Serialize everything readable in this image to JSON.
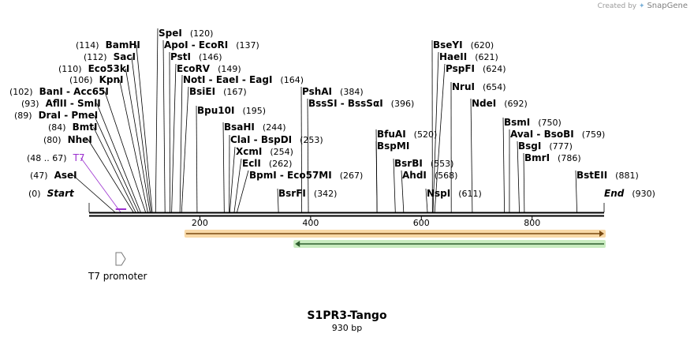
{
  "credit": {
    "prefix": "Created by",
    "brand": "SnapGene"
  },
  "title": "S1PR3-Tango",
  "subtitle": "930 bp",
  "colors": {
    "backbone": "#000000",
    "t7": "#9b2fcf",
    "orange": "#f2a23a",
    "orangeBg": "#f8d9a8",
    "green": "#3aa63a",
    "greenBg": "#c9ecc0"
  },
  "scale": {
    "length": 930,
    "ticks": [
      200,
      400,
      600,
      800
    ]
  },
  "site_labels": [
    {
      "id": "start",
      "pos": "(0)",
      "name": "Start",
      "style": "italic",
      "bp": 0
    },
    {
      "id": "asei",
      "pos": "(47)",
      "name": "AseI",
      "bp": 47
    },
    {
      "id": "t7",
      "pos": "(48 .. 67)",
      "name": "T7",
      "style": "primer",
      "bp": 57
    },
    {
      "id": "nhei",
      "pos": "(80)",
      "name": "NheI",
      "bp": 80
    },
    {
      "id": "bmti",
      "pos": "(84)",
      "name": "BmtI",
      "bp": 84
    },
    {
      "id": "drai",
      "pos": "(89)",
      "name": "DraI - PmeI",
      "bp": 89
    },
    {
      "id": "aflii",
      "pos": "(93)",
      "name": "AflII - SmlI",
      "bp": 93
    },
    {
      "id": "bani",
      "pos": "(102)",
      "name": "BanI - Acc65I",
      "bp": 102
    },
    {
      "id": "kpni",
      "pos": "(106)",
      "name": "KpnI",
      "bp": 106
    },
    {
      "id": "eco53ki",
      "pos": "(110)",
      "name": "Eco53kI",
      "bp": 110
    },
    {
      "id": "saci",
      "pos": "(112)",
      "name": "SacI",
      "bp": 112
    },
    {
      "id": "bamhi",
      "pos": "(114)",
      "name": "BamHI",
      "bp": 114
    },
    {
      "id": "spei",
      "pos": "(120)",
      "name": "SpeI",
      "bp": 120
    },
    {
      "id": "apoi",
      "pos": "(137)",
      "name": "ApoI - EcoRI",
      "bp": 137
    },
    {
      "id": "psti",
      "pos": "(146)",
      "name": "PstI",
      "bp": 146
    },
    {
      "id": "ecorv",
      "pos": "(149)",
      "name": "EcoRV",
      "bp": 149
    },
    {
      "id": "noti",
      "pos": "(164)",
      "name": "NotI - EaeI - EagI",
      "bp": 164
    },
    {
      "id": "bsiei",
      "pos": "(167)",
      "name": "BsiEI",
      "bp": 167
    },
    {
      "id": "bpu10i",
      "pos": "(195)",
      "name": "Bpu10I",
      "bp": 195
    },
    {
      "id": "bsahi",
      "pos": "(244)",
      "name": "BsaHI",
      "bp": 244
    },
    {
      "id": "clai",
      "pos": "(253)",
      "name": "ClaI - BspDI",
      "bp": 253
    },
    {
      "id": "xcmi",
      "pos": "(254)",
      "name": "XcmI",
      "bp": 254
    },
    {
      "id": "ecli",
      "pos": "(262)",
      "name": "EclI",
      "bp": 262
    },
    {
      "id": "bpmi",
      "pos": "(267)",
      "name": "BpmI - Eco57MI",
      "bp": 267
    },
    {
      "id": "bsrfi",
      "pos": "(342)",
      "name": "BsrFI",
      "bp": 342
    },
    {
      "id": "pshai",
      "pos": "(384)",
      "name": "PshAI",
      "bp": 384
    },
    {
      "id": "bsssi",
      "pos": "(396)",
      "name": "BssSI - BssSαI",
      "bp": 396
    },
    {
      "id": "bfuai",
      "pos": "(520)",
      "name": "BfuAI",
      "bp": 520
    },
    {
      "id": "bspmi",
      "pos": "",
      "name": "BspMI",
      "bp": 520
    },
    {
      "id": "bsrbi",
      "pos": "(553)",
      "name": "BsrBI",
      "bp": 553
    },
    {
      "id": "ahdi",
      "pos": "(568)",
      "name": "AhdI",
      "bp": 568
    },
    {
      "id": "nspi",
      "pos": "(611)",
      "name": "NspI",
      "bp": 611
    },
    {
      "id": "bseyi",
      "pos": "(620)",
      "name": "BseYI",
      "bp": 620
    },
    {
      "id": "haeii",
      "pos": "(621)",
      "name": "HaeII",
      "bp": 621
    },
    {
      "id": "pspfi",
      "pos": "(624)",
      "name": "PspFI",
      "bp": 624
    },
    {
      "id": "nrui",
      "pos": "(654)",
      "name": "NruI",
      "bp": 654
    },
    {
      "id": "ndei",
      "pos": "(692)",
      "name": "NdeI",
      "bp": 692
    },
    {
      "id": "bsmi",
      "pos": "(750)",
      "name": "BsmI",
      "bp": 750
    },
    {
      "id": "avai",
      "pos": "(759)",
      "name": "AvaI - BsoBI",
      "bp": 759
    },
    {
      "id": "bsgi",
      "pos": "(777)",
      "name": "BsgI",
      "bp": 777
    },
    {
      "id": "bmri",
      "pos": "(786)",
      "name": "BmrI",
      "bp": 786
    },
    {
      "id": "bsteii",
      "pos": "(881)",
      "name": "BstEII",
      "bp": 881
    },
    {
      "id": "end",
      "pos": "(930)",
      "name": "End",
      "style": "italic",
      "bp": 930
    }
  ],
  "features": [
    {
      "id": "t7-promoter",
      "label": "T7 promoter",
      "direction": "forward"
    },
    {
      "id": "orange-feature",
      "direction": "forward"
    },
    {
      "id": "green-feature",
      "direction": "reverse"
    }
  ]
}
